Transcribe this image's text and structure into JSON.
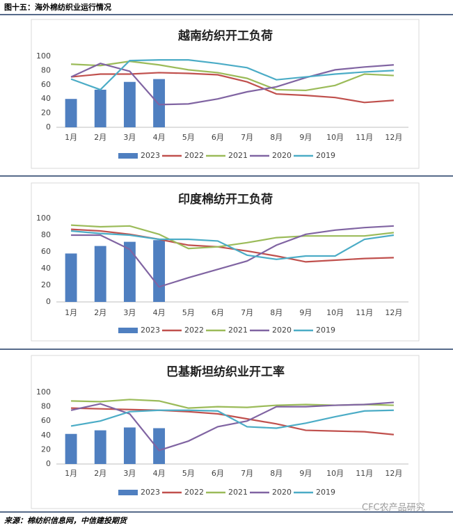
{
  "header": {
    "title": "图十五：海外棉纺织业运行情况"
  },
  "source": "来源：棉纺织信息网，中信建投期货",
  "watermark": "CFC农产品研究",
  "chart_data": [
    {
      "type": "combo",
      "title": "越南纺织开工负荷",
      "categories": [
        "1月",
        "2月",
        "3月",
        "4月",
        "5月",
        "6月",
        "7月",
        "8月",
        "9月",
        "10月",
        "11月",
        "12月"
      ],
      "ylim": [
        0,
        100
      ],
      "yticks": [
        0,
        20,
        40,
        60,
        80,
        100
      ],
      "series": [
        {
          "name": "2023",
          "type": "bar",
          "color": "#4f7fc0",
          "values": [
            40,
            53,
            64,
            68,
            null,
            null,
            null,
            null,
            null,
            null,
            null,
            null
          ]
        },
        {
          "name": "2022",
          "type": "line",
          "color": "#c0504d",
          "values": [
            71,
            75,
            75,
            77,
            76,
            74,
            64,
            47,
            45,
            42,
            35,
            38
          ]
        },
        {
          "name": "2021",
          "type": "line",
          "color": "#9bbb59",
          "values": [
            89,
            87,
            93,
            88,
            81,
            77,
            69,
            53,
            52,
            59,
            75,
            73
          ]
        },
        {
          "name": "2020",
          "type": "line",
          "color": "#8064a2",
          "values": [
            71,
            90,
            79,
            32,
            33,
            40,
            50,
            57,
            70,
            81,
            85,
            88
          ]
        },
        {
          "name": "2019",
          "type": "line",
          "color": "#4bacc6",
          "values": [
            68,
            53,
            94,
            95,
            95,
            90,
            84,
            67,
            71,
            75,
            78,
            80
          ]
        }
      ]
    },
    {
      "type": "combo",
      "title": "印度棉纺开工负荷",
      "categories": [
        "1月",
        "2月",
        "3月",
        "4月",
        "5月",
        "6月",
        "7月",
        "8月",
        "9月",
        "10月",
        "11月",
        "12月"
      ],
      "ylim": [
        0,
        100
      ],
      "yticks": [
        0,
        20,
        40,
        60,
        80,
        100
      ],
      "series": [
        {
          "name": "2023",
          "type": "bar",
          "color": "#4f7fc0",
          "values": [
            58,
            67,
            72,
            74,
            null,
            null,
            null,
            null,
            null,
            null,
            null,
            null
          ]
        },
        {
          "name": "2022",
          "type": "line",
          "color": "#c0504d",
          "values": [
            87,
            85,
            81,
            75,
            68,
            66,
            61,
            55,
            48,
            50,
            52,
            53
          ]
        },
        {
          "name": "2021",
          "type": "line",
          "color": "#9bbb59",
          "values": [
            92,
            90,
            91,
            81,
            64,
            66,
            71,
            77,
            79,
            79,
            79,
            83
          ]
        },
        {
          "name": "2020",
          "type": "line",
          "color": "#8064a2",
          "values": [
            80,
            80,
            63,
            18,
            29,
            39,
            49,
            68,
            81,
            86,
            89,
            91
          ]
        },
        {
          "name": "2019",
          "type": "line",
          "color": "#4bacc6",
          "values": [
            85,
            82,
            80,
            75,
            75,
            73,
            56,
            51,
            55,
            55,
            75,
            80
          ]
        }
      ]
    },
    {
      "type": "combo",
      "title": "巴基斯坦纺织业开工率",
      "categories": [
        "1月",
        "2月",
        "3月",
        "4月",
        "5月",
        "6月",
        "7月",
        "8月",
        "9月",
        "10月",
        "11月",
        "12月"
      ],
      "ylim": [
        0,
        100
      ],
      "yticks": [
        0,
        20,
        40,
        60,
        80,
        100
      ],
      "series": [
        {
          "name": "2023",
          "type": "bar",
          "color": "#4f7fc0",
          "values": [
            42,
            47,
            51,
            50,
            null,
            null,
            null,
            null,
            null,
            null,
            null,
            null
          ]
        },
        {
          "name": "2022",
          "type": "line",
          "color": "#c0504d",
          "values": [
            78,
            77,
            76,
            75,
            73,
            70,
            63,
            56,
            47,
            46,
            45,
            41
          ]
        },
        {
          "name": "2021",
          "type": "line",
          "color": "#9bbb59",
          "values": [
            88,
            87,
            90,
            88,
            78,
            80,
            79,
            82,
            83,
            82,
            83,
            82
          ]
        },
        {
          "name": "2020",
          "type": "line",
          "color": "#8064a2",
          "values": [
            75,
            84,
            70,
            19,
            32,
            52,
            60,
            80,
            80,
            82,
            83,
            86
          ]
        },
        {
          "name": "2019",
          "type": "line",
          "color": "#4bacc6",
          "values": [
            53,
            60,
            73,
            75,
            75,
            74,
            52,
            50,
            57,
            66,
            74,
            75
          ]
        }
      ]
    }
  ]
}
